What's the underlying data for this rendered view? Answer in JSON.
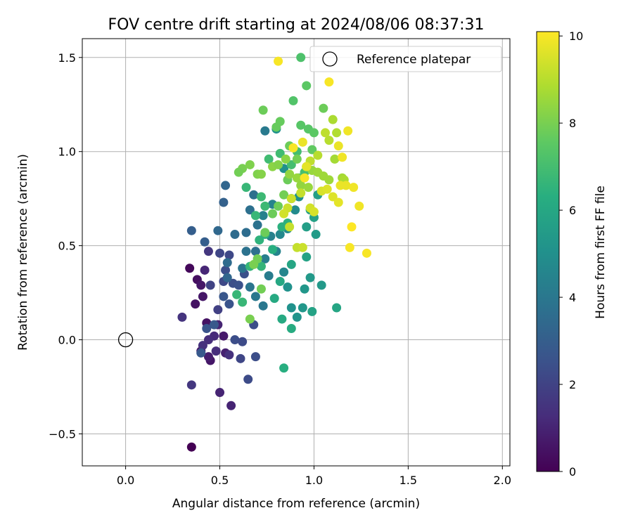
{
  "chart_data": {
    "type": "scatter",
    "title": "FOV centre drift starting at 2024/08/06 08:37:31",
    "xlabel": "Angular distance from reference (arcmin)",
    "ylabel": "Rotation from reference (arcmin)",
    "xlim": [
      -0.23,
      2.04
    ],
    "ylim": [
      -0.67,
      1.6
    ],
    "xticks": [
      0.0,
      0.5,
      1.0,
      1.5,
      2.0
    ],
    "xtick_labels": [
      "0.0",
      "0.5",
      "1.0",
      "1.5",
      "2.0"
    ],
    "yticks": [
      -0.5,
      0.0,
      0.5,
      1.0,
      1.5
    ],
    "ytick_labels": [
      "−0.5",
      "0.0",
      "0.5",
      "1.0",
      "1.5"
    ],
    "grid": true,
    "legend": {
      "placement": "upper-right",
      "entries": [
        "Reference platepar"
      ]
    },
    "reference_point": {
      "x": 0.0,
      "y": 0.0
    },
    "colorbar": {
      "label": "Hours from first FF file",
      "colormap": "viridis",
      "range": [
        0,
        10.1
      ],
      "ticks": [
        0,
        2,
        4,
        6,
        8,
        10
      ],
      "tick_labels": [
        "0",
        "2",
        "4",
        "6",
        "8",
        "10"
      ]
    },
    "points": [
      [
        0.35,
        -0.57,
        0.0
      ],
      [
        0.34,
        0.38,
        0.2
      ],
      [
        0.38,
        0.32,
        0.4
      ],
      [
        0.37,
        0.19,
        0.5
      ],
      [
        0.4,
        0.29,
        0.6
      ],
      [
        0.41,
        0.23,
        0.6
      ],
      [
        0.43,
        0.09,
        0.5
      ],
      [
        0.45,
        -0.11,
        0.6
      ],
      [
        0.4,
        -0.06,
        0.7
      ],
      [
        0.44,
        -0.09,
        0.8
      ],
      [
        0.52,
        0.02,
        0.7
      ],
      [
        0.53,
        -0.07,
        0.9
      ],
      [
        0.5,
        -0.28,
        1.0
      ],
      [
        0.56,
        -0.35,
        1.0
      ],
      [
        0.49,
        0.08,
        1.0
      ],
      [
        0.42,
        0.37,
        1.1
      ],
      [
        0.47,
        0.02,
        1.2
      ],
      [
        0.44,
        0.0,
        1.3
      ],
      [
        0.48,
        -0.06,
        1.3
      ],
      [
        0.55,
        -0.08,
        1.4
      ],
      [
        0.3,
        0.12,
        1.5
      ],
      [
        0.35,
        -0.24,
        1.6
      ],
      [
        0.44,
        0.47,
        1.6
      ],
      [
        0.41,
        -0.03,
        1.4
      ],
      [
        0.49,
        0.16,
        1.9
      ],
      [
        0.45,
        0.29,
        2.0
      ],
      [
        0.5,
        0.46,
        2.1
      ],
      [
        0.55,
        0.45,
        2.2
      ],
      [
        0.52,
        0.31,
        2.2
      ],
      [
        0.53,
        0.37,
        2.4
      ],
      [
        0.57,
        0.3,
        2.4
      ],
      [
        0.6,
        0.29,
        2.5
      ],
      [
        0.63,
        0.35,
        2.5
      ],
      [
        0.55,
        0.19,
        2.6
      ],
      [
        0.52,
        0.23,
        2.7
      ],
      [
        0.58,
        0.0,
        2.4
      ],
      [
        0.62,
        -0.01,
        2.3
      ],
      [
        0.68,
        0.08,
        2.4
      ],
      [
        0.61,
        -0.1,
        2.1
      ],
      [
        0.65,
        -0.21,
        2.3
      ],
      [
        0.69,
        -0.09,
        2.4
      ],
      [
        0.47,
        0.08,
        2.8
      ],
      [
        0.43,
        0.06,
        2.6
      ],
      [
        0.4,
        -0.07,
        2.8
      ],
      [
        0.35,
        0.58,
        3.0
      ],
      [
        0.42,
        0.52,
        3.0
      ],
      [
        0.53,
        0.82,
        3.3
      ],
      [
        0.52,
        0.73,
        3.1
      ],
      [
        0.49,
        0.58,
        3.4
      ],
      [
        0.54,
        0.41,
        3.5
      ],
      [
        0.54,
        0.33,
        3.3
      ],
      [
        0.58,
        0.56,
        3.5
      ],
      [
        0.64,
        0.57,
        3.6
      ],
      [
        0.66,
        0.69,
        3.7
      ],
      [
        0.69,
        0.47,
        3.7
      ],
      [
        0.64,
        0.47,
        3.8
      ],
      [
        0.62,
        0.38,
        3.9
      ],
      [
        0.7,
        0.61,
        3.8
      ],
      [
        0.68,
        0.77,
        3.7
      ],
      [
        0.74,
        1.11,
        4.1
      ],
      [
        0.66,
        0.28,
        3.9
      ],
      [
        0.69,
        0.23,
        4.0
      ],
      [
        0.73,
        0.18,
        4.0
      ],
      [
        0.76,
        0.34,
        4.2
      ],
      [
        0.74,
        0.43,
        4.3
      ],
      [
        0.77,
        0.55,
        4.4
      ],
      [
        0.8,
        0.47,
        4.5
      ],
      [
        0.73,
        0.66,
        4.4
      ],
      [
        0.78,
        0.72,
        4.5
      ],
      [
        0.84,
        0.36,
        4.6
      ],
      [
        0.82,
        0.56,
        4.7
      ],
      [
        0.86,
        0.59,
        4.8
      ],
      [
        0.88,
        0.75,
        4.9
      ],
      [
        0.9,
        0.69,
        4.8
      ],
      [
        0.92,
        0.76,
        5.0
      ],
      [
        0.84,
        0.91,
        5.0
      ],
      [
        0.8,
        1.12,
        5.1
      ],
      [
        0.86,
        0.28,
        5.1
      ],
      [
        0.88,
        0.17,
        5.1
      ],
      [
        0.91,
        0.12,
        5.2
      ],
      [
        0.94,
        0.17,
        5.3
      ],
      [
        0.95,
        0.27,
        5.3
      ],
      [
        0.98,
        0.33,
        5.4
      ],
      [
        1.04,
        0.29,
        5.4
      ],
      [
        1.01,
        0.56,
        5.5
      ],
      [
        0.96,
        0.6,
        5.6
      ],
      [
        0.98,
        0.69,
        5.6
      ],
      [
        1.02,
        0.77,
        5.6
      ],
      [
        1.0,
        0.65,
        5.7
      ],
      [
        0.99,
        0.15,
        5.8
      ],
      [
        1.12,
        0.17,
        5.9
      ],
      [
        0.96,
        0.44,
        5.8
      ],
      [
        0.88,
        0.4,
        5.9
      ],
      [
        0.82,
        0.31,
        6.0
      ],
      [
        0.79,
        0.22,
        6.1
      ],
      [
        0.83,
        0.11,
        6.1
      ],
      [
        0.88,
        0.06,
        6.2
      ],
      [
        0.84,
        -0.15,
        6.3
      ],
      [
        0.78,
        0.48,
        6.3
      ],
      [
        0.83,
        0.6,
        6.4
      ],
      [
        0.86,
        0.62,
        6.4
      ],
      [
        0.74,
        0.56,
        6.4
      ],
      [
        0.71,
        0.53,
        6.5
      ],
      [
        0.72,
        0.39,
        6.6
      ],
      [
        0.66,
        0.39,
        6.6
      ],
      [
        0.62,
        0.2,
        6.7
      ],
      [
        0.59,
        0.24,
        6.7
      ],
      [
        0.64,
        0.81,
        6.7
      ],
      [
        0.69,
        0.66,
        6.7
      ],
      [
        0.72,
        0.76,
        6.8
      ],
      [
        0.74,
        0.71,
        6.8
      ],
      [
        0.76,
        0.96,
        6.9
      ],
      [
        0.82,
        0.99,
        6.9
      ],
      [
        0.88,
        0.93,
        7.0
      ],
      [
        0.91,
        1.0,
        7.0
      ],
      [
        0.92,
        0.86,
        7.1
      ],
      [
        0.95,
        0.89,
        7.1
      ],
      [
        0.93,
        1.5,
        7.2
      ],
      [
        0.96,
        1.35,
        7.5
      ],
      [
        0.89,
        1.27,
        7.3
      ],
      [
        0.93,
        1.14,
        7.4
      ],
      [
        0.97,
        1.12,
        7.4
      ],
      [
        1.0,
        1.1,
        7.5
      ],
      [
        0.99,
        1.01,
        7.6
      ],
      [
        1.05,
        1.23,
        7.8
      ],
      [
        0.82,
        1.16,
        7.7
      ],
      [
        0.73,
        1.22,
        7.8
      ],
      [
        0.8,
        1.13,
        7.7
      ],
      [
        0.87,
        1.03,
        7.8
      ],
      [
        0.91,
        0.96,
        7.9
      ],
      [
        0.86,
        0.85,
        7.8
      ],
      [
        0.84,
        0.77,
        7.9
      ],
      [
        0.81,
        0.71,
        7.8
      ],
      [
        0.78,
        0.67,
        7.8
      ],
      [
        0.74,
        0.57,
        7.8
      ],
      [
        0.7,
        0.43,
        7.9
      ],
      [
        0.68,
        0.4,
        8.0
      ],
      [
        0.72,
        0.27,
        7.9
      ],
      [
        0.66,
        0.11,
        8.0
      ],
      [
        0.62,
        0.91,
        8.0
      ],
      [
        0.6,
        0.89,
        7.9
      ],
      [
        0.66,
        0.93,
        8.1
      ],
      [
        0.7,
        0.88,
        8.1
      ],
      [
        0.72,
        0.88,
        8.2
      ],
      [
        0.78,
        0.92,
        8.3
      ],
      [
        0.81,
        0.93,
        8.2
      ],
      [
        0.85,
        0.96,
        8.3
      ],
      [
        0.87,
        0.88,
        8.4
      ],
      [
        0.91,
        0.86,
        8.5
      ],
      [
        0.93,
        0.82,
        8.4
      ],
      [
        0.97,
        0.81,
        8.5
      ],
      [
        0.99,
        0.9,
        8.5
      ],
      [
        1.02,
        0.89,
        8.6
      ],
      [
        1.05,
        0.87,
        8.6
      ],
      [
        1.08,
        0.85,
        8.6
      ],
      [
        1.11,
        0.96,
        8.7
      ],
      [
        1.15,
        0.86,
        8.7
      ],
      [
        1.16,
        0.85,
        8.8
      ],
      [
        1.1,
        1.17,
        8.8
      ],
      [
        1.12,
        1.1,
        8.9
      ],
      [
        1.08,
        1.06,
        9.0
      ],
      [
        1.06,
        1.1,
        9.1
      ],
      [
        1.02,
        0.98,
        9.0
      ],
      [
        0.98,
        0.95,
        9.1
      ],
      [
        0.96,
        0.92,
        9.2
      ],
      [
        0.93,
        0.78,
        9.2
      ],
      [
        0.88,
        0.75,
        9.3
      ],
      [
        0.86,
        0.7,
        9.3
      ],
      [
        0.84,
        0.67,
        9.4
      ],
      [
        0.87,
        0.6,
        9.2
      ],
      [
        0.91,
        0.49,
        9.2
      ],
      [
        0.94,
        0.49,
        9.3
      ],
      [
        0.98,
        0.7,
        9.4
      ],
      [
        1.0,
        0.68,
        9.5
      ],
      [
        1.04,
        0.79,
        9.5
      ],
      [
        1.07,
        0.8,
        9.6
      ],
      [
        1.1,
        0.76,
        9.6
      ],
      [
        1.13,
        0.73,
        9.7
      ],
      [
        1.14,
        0.82,
        9.8
      ],
      [
        1.17,
        0.82,
        9.8
      ],
      [
        1.21,
        0.81,
        9.9
      ],
      [
        1.24,
        0.71,
        9.9
      ],
      [
        1.28,
        0.46,
        10.0
      ],
      [
        1.19,
        0.49,
        10.0
      ],
      [
        1.2,
        0.6,
        10.1
      ],
      [
        1.15,
        0.97,
        9.9
      ],
      [
        1.13,
        1.03,
        9.8
      ],
      [
        1.18,
        1.11,
        9.9
      ],
      [
        1.08,
        1.37,
        10.0
      ],
      [
        0.81,
        1.48,
        10.0
      ],
      [
        0.89,
        1.02,
        10.0
      ],
      [
        0.94,
        1.05,
        9.8
      ],
      [
        0.96,
        0.92,
        9.7
      ],
      [
        0.95,
        0.86,
        10.0
      ]
    ]
  }
}
